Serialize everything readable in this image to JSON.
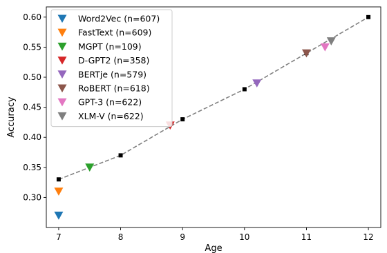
{
  "chart_data": {
    "type": "scatter",
    "title": "",
    "xlabel": "Age",
    "ylabel": "Accuracy",
    "xlim": [
      6.8,
      12.2
    ],
    "ylim": [
      0.25,
      0.617
    ],
    "xticks": [
      7,
      8,
      9,
      10,
      11,
      12
    ],
    "xtick_labels": [
      "7",
      "8",
      "9",
      "10",
      "11",
      "12"
    ],
    "yticks": [
      0.3,
      0.35,
      0.4,
      0.45,
      0.5,
      0.55,
      0.6
    ],
    "ytick_labels": [
      "0.30",
      "0.35",
      "0.40",
      "0.45",
      "0.50",
      "0.55",
      "0.60"
    ],
    "grid": false,
    "legend_position": "top-left",
    "reference_line": {
      "style": "dashed",
      "color": "#808080",
      "marker": "square",
      "marker_color": "#000000",
      "x": [
        7,
        8,
        9,
        10,
        11,
        12
      ],
      "y": [
        0.33,
        0.37,
        0.43,
        0.48,
        0.54,
        0.6
      ]
    },
    "series": [
      {
        "name": "Word2Vec (n=607)",
        "color": "#1f77b4",
        "marker": "triangle-down",
        "x": 7.0,
        "y": 0.27
      },
      {
        "name": "FastText (n=609)",
        "color": "#ff7f0e",
        "marker": "triangle-down",
        "x": 7.0,
        "y": 0.31
      },
      {
        "name": "MGPT (n=109)",
        "color": "#2ca02c",
        "marker": "triangle-down",
        "x": 7.5,
        "y": 0.35
      },
      {
        "name": "D-GPT2 (n=358)",
        "color": "#d62728",
        "marker": "triangle-down",
        "x": 8.8,
        "y": 0.42
      },
      {
        "name": "BERTje (n=579)",
        "color": "#9467bd",
        "marker": "triangle-down",
        "x": 10.2,
        "y": 0.49
      },
      {
        "name": "RoBERT (n=618)",
        "color": "#8c564b",
        "marker": "triangle-down",
        "x": 11.0,
        "y": 0.54
      },
      {
        "name": "GPT-3 (n=622)",
        "color": "#e377c2",
        "marker": "triangle-down",
        "x": 11.3,
        "y": 0.55
      },
      {
        "name": "XLM-V (n=622)",
        "color": "#7f7f7f",
        "marker": "triangle-down",
        "x": 11.4,
        "y": 0.56
      }
    ]
  }
}
